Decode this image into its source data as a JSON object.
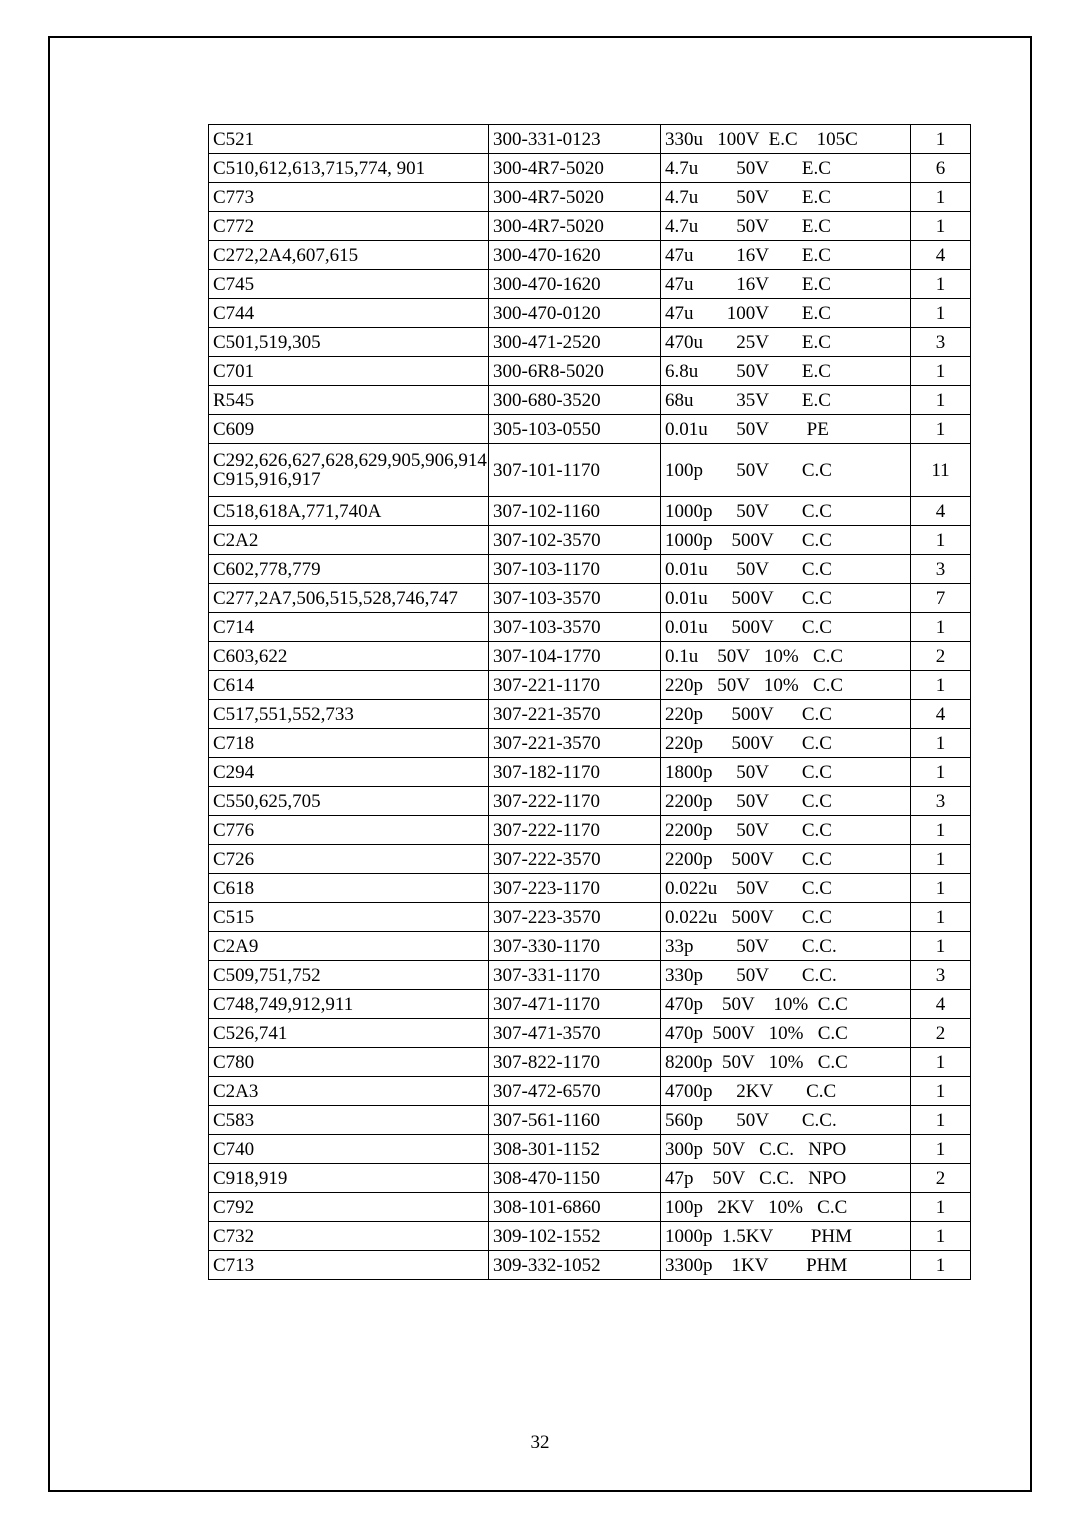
{
  "page_number": "32",
  "table": {
    "rows": [
      {
        "ref": "C521",
        "part": "300-331-0123",
        "desc": "330u   100V  E.C    105C",
        "qty": "1"
      },
      {
        "ref": "C510,612,613,715,774, 901",
        "part": "300-4R7-5020",
        "desc": "4.7u        50V       E.C",
        "qty": "6"
      },
      {
        "ref": "C773",
        "part": "300-4R7-5020",
        "desc": "4.7u        50V       E.C",
        "qty": "1"
      },
      {
        "ref": "C772",
        "part": "300-4R7-5020",
        "desc": "4.7u        50V       E.C",
        "qty": "1"
      },
      {
        "ref": "C272,2A4,607,615",
        "part": "300-470-1620",
        "desc": "47u         16V       E.C",
        "qty": "4"
      },
      {
        "ref": "C745",
        "part": "300-470-1620",
        "desc": "47u         16V       E.C",
        "qty": "1"
      },
      {
        "ref": "C744",
        "part": "300-470-0120",
        "desc": "47u       100V       E.C",
        "qty": "1"
      },
      {
        "ref": "C501,519,305",
        "part": "300-471-2520",
        "desc": "470u       25V       E.C",
        "qty": "3"
      },
      {
        "ref": "C701",
        "part": "300-6R8-5020",
        "desc": "6.8u        50V       E.C",
        "qty": "1"
      },
      {
        "ref": "R545",
        "part": "300-680-3520",
        "desc": "68u         35V       E.C",
        "qty": "1"
      },
      {
        "ref": "C609",
        "part": "305-103-0550",
        "desc": "0.01u      50V        PE",
        "qty": "1"
      },
      {
        "ref": "C292,626,627,628,629,905,906,914\nC915,916,917",
        "part": "307-101-1170",
        "desc": "100p       50V       C.C",
        "qty": "11",
        "tall": true
      },
      {
        "ref": "C518,618A,771,740A",
        "part": "307-102-1160",
        "desc": "1000p     50V       C.C",
        "qty": "4"
      },
      {
        "ref": "C2A2",
        "part": "307-102-3570",
        "desc": "1000p    500V      C.C",
        "qty": "1"
      },
      {
        "ref": "C602,778,779",
        "part": "307-103-1170",
        "desc": "0.01u      50V       C.C",
        "qty": "3"
      },
      {
        "ref": "C277,2A7,506,515,528,746,747",
        "part": "307-103-3570",
        "desc": "0.01u     500V      C.C",
        "qty": "7"
      },
      {
        "ref": "C714",
        "part": "307-103-3570",
        "desc": "0.01u     500V      C.C",
        "qty": "1"
      },
      {
        "ref": "C603,622",
        "part": "307-104-1770",
        "desc": "0.1u    50V   10%   C.C",
        "qty": "2"
      },
      {
        "ref": "C614",
        "part": "307-221-1170",
        "desc": "220p   50V   10%   C.C",
        "qty": "1"
      },
      {
        "ref": "C517,551,552,733",
        "part": "307-221-3570",
        "desc": "220p      500V      C.C",
        "qty": "4"
      },
      {
        "ref": "C718",
        "part": "307-221-3570",
        "desc": "220p      500V      C.C",
        "qty": "1"
      },
      {
        "ref": "C294",
        "part": "307-182-1170",
        "desc": "1800p     50V       C.C",
        "qty": "1"
      },
      {
        "ref": "C550,625,705",
        "part": "307-222-1170",
        "desc": "2200p     50V       C.C",
        "qty": "3"
      },
      {
        "ref": "C776",
        "part": "307-222-1170",
        "desc": "2200p     50V       C.C",
        "qty": "1"
      },
      {
        "ref": "C726",
        "part": "307-222-3570",
        "desc": "2200p    500V      C.C",
        "qty": "1"
      },
      {
        "ref": "C618",
        "part": "307-223-1170",
        "desc": "0.022u    50V       C.C",
        "qty": "1"
      },
      {
        "ref": "C515",
        "part": "307-223-3570",
        "desc": "0.022u   500V      C.C",
        "qty": "1"
      },
      {
        "ref": "C2A9",
        "part": "307-330-1170",
        "desc": "33p         50V       C.C.",
        "qty": "1"
      },
      {
        "ref": "C509,751,752",
        "part": "307-331-1170",
        "desc": "330p       50V       C.C.",
        "qty": "3"
      },
      {
        "ref": "C748,749,912,911",
        "part": "307-471-1170",
        "desc": "470p    50V    10%  C.C",
        "qty": "4"
      },
      {
        "ref": "C526,741",
        "part": "307-471-3570",
        "desc": "470p  500V   10%   C.C",
        "qty": "2"
      },
      {
        "ref": "C780",
        "part": "307-822-1170",
        "desc": "8200p  50V   10%   C.C",
        "qty": "1"
      },
      {
        "ref": "C2A3",
        "part": "307-472-6570",
        "desc": "4700p     2KV       C.C",
        "qty": "1"
      },
      {
        "ref": "C583",
        "part": "307-561-1160",
        "desc": "560p       50V       C.C.",
        "qty": "1"
      },
      {
        "ref": "C740",
        "part": "308-301-1152",
        "desc": "300p  50V   C.C.   NPO",
        "qty": "1"
      },
      {
        "ref": "C918,919",
        "part": "308-470-1150",
        "desc": "47p    50V   C.C.   NPO",
        "qty": "2"
      },
      {
        "ref": "C792",
        "part": "308-101-6860",
        "desc": "100p   2KV   10%   C.C",
        "qty": "1"
      },
      {
        "ref": "C732",
        "part": "309-102-1552",
        "desc": "1000p  1.5KV        PHM",
        "qty": "1"
      },
      {
        "ref": "C713",
        "part": "309-332-1052",
        "desc": "3300p    1KV        PHM",
        "qty": "1"
      }
    ]
  }
}
